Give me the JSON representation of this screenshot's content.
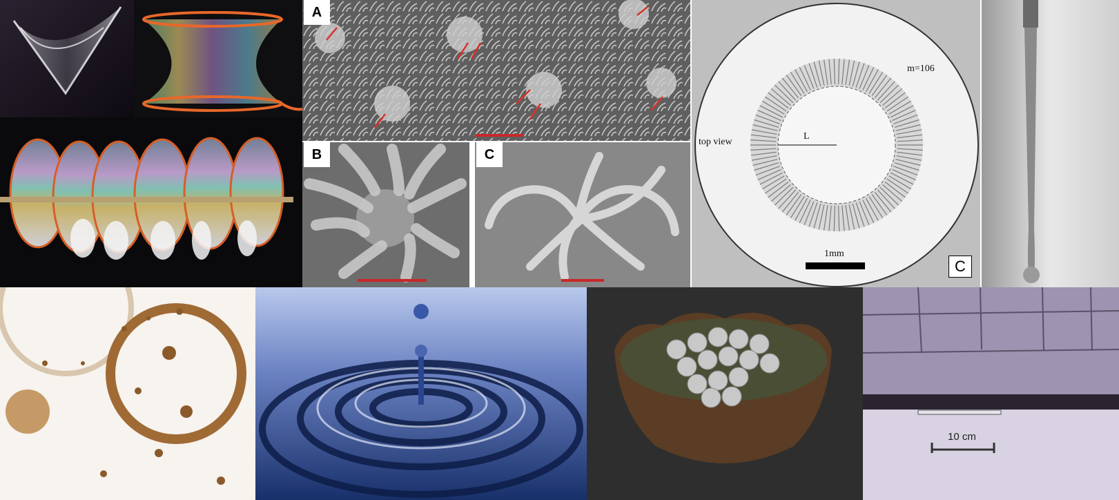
{
  "collage": {
    "tiles": [
      {
        "id": "soap-film-wire-v",
        "subject": "soap film spanning a bent wire frame"
      },
      {
        "id": "soap-film-catenoid",
        "subject": "iridescent soap film catenoid between two orange rings"
      },
      {
        "id": "soap-film-helix",
        "subject": "soap film on a helical orange wire around a rod"
      },
      {
        "id": "sem-pillars-overview",
        "subject": "electron micrograph of clustered micro-pillars with red arrows"
      },
      {
        "id": "sem-pillars-closeup-b",
        "subject": "close-up micrograph of pillar cluster around a sphere"
      },
      {
        "id": "sem-pillars-closeup-c",
        "subject": "close-up micrograph of twisted pillar spiral"
      },
      {
        "id": "radial-instability",
        "subject": "top view of radial fingering pattern inside a circle"
      },
      {
        "id": "liquid-thread",
        "subject": "liquid thread forming a drop below a nozzle"
      },
      {
        "id": "coffee-rings",
        "subject": "coffee stain rings and splashes on white"
      },
      {
        "id": "water-drop",
        "subject": "water drop splash with concentric ripples"
      },
      {
        "id": "coins-floating",
        "subject": "coins floating in a ceramic bowl of water"
      },
      {
        "id": "rock-strata",
        "subject": "layered rock outcrop with scale bar"
      }
    ],
    "labels": {
      "panel_a": "A",
      "panel_b": "B",
      "panel_c": "C",
      "radial_panel": "C",
      "mode_number": "m=106",
      "top_view": "top view",
      "length_symbol": "L",
      "radial_scale": "1mm",
      "rock_scale": "10 cm"
    },
    "colors": {
      "wire_orange": "#e8672a",
      "sem_gray": "#8a8a8a",
      "scale_red": "#c8282a",
      "water_blue": "#1f3c78",
      "coffee_brown": "#8b5a2b"
    }
  }
}
